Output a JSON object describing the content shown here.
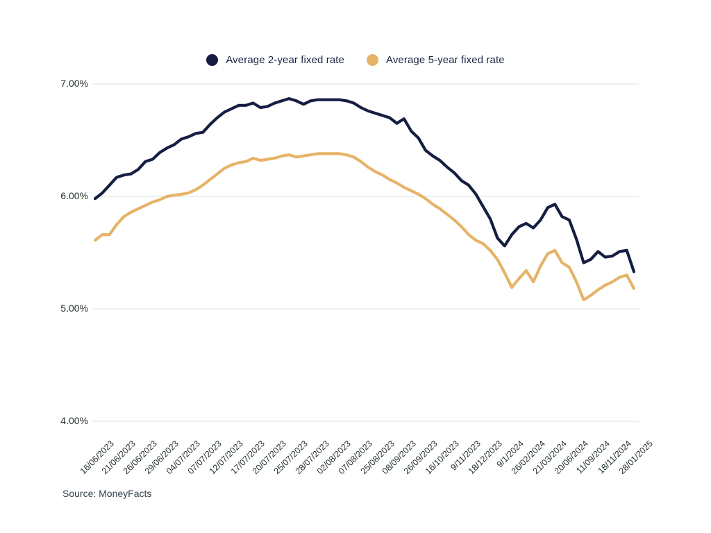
{
  "legend": [
    {
      "label": "Average 2-year fixed rate"
    },
    {
      "label": "Average 5-year fixed rate"
    }
  ],
  "source_text": "Source: MoneyFacts",
  "colors": {
    "series_2yr": "#151e42",
    "series_5yr": "#e6b369",
    "grid": "#e4e6e5",
    "axis_text": "#25332e"
  },
  "chart_data": {
    "type": "line",
    "title": "",
    "xlabel": "",
    "ylabel": "",
    "grid": true,
    "legend_position": "top",
    "y_ticks": [
      "7.00%",
      "6.00%",
      "5.00%",
      "4.00%"
    ],
    "y_tick_values": [
      7.0,
      6.0,
      5.0,
      4.0
    ],
    "ylim": [
      4.0,
      7.2
    ],
    "grid_color": "#e4e6e5",
    "label_every": 3,
    "x_labels": [
      "16/06/2023",
      "21/06/2023",
      "26/06/2023",
      "29/06/2023",
      "04/07/2023",
      "07/07/2023",
      "12/07/2023",
      "17/07/2023",
      "20/07/2023",
      "25/07/2023",
      "28/07/2023",
      "02/08/2023",
      "07/08/2023",
      "25/08/2023",
      "08/09/2023",
      "26/09/2023",
      "16/10/2023",
      "9/11/2023",
      "18/12/2023",
      "9/1/2024",
      "26/02/2024",
      "21/03/2024",
      "20/06/2024",
      "11/09/2024",
      "18/11/2024",
      "28/01/2025"
    ],
    "series": [
      {
        "name": "Average 2-year fixed rate",
        "color": "#151e42",
        "values": [
          5.98,
          6.03,
          6.1,
          6.17,
          6.19,
          6.2,
          6.24,
          6.31,
          6.33,
          6.39,
          6.43,
          6.46,
          6.51,
          6.53,
          6.56,
          6.57,
          6.64,
          6.7,
          6.75,
          6.78,
          6.81,
          6.81,
          6.83,
          6.79,
          6.8,
          6.83,
          6.85,
          6.87,
          6.85,
          6.82,
          6.85,
          6.86,
          6.86,
          6.86,
          6.86,
          6.85,
          6.83,
          6.79,
          6.76,
          6.74,
          6.72,
          6.7,
          6.65,
          6.69,
          6.58,
          6.52,
          6.41,
          6.36,
          6.32,
          6.26,
          6.21,
          6.14,
          6.1,
          6.02,
          5.91,
          5.8,
          5.63,
          5.56,
          5.66,
          5.73,
          5.76,
          5.72,
          5.79,
          5.9,
          5.93,
          5.82,
          5.79,
          5.62,
          5.41,
          5.44,
          5.51,
          5.46,
          5.47,
          5.51,
          5.52,
          5.33
        ]
      },
      {
        "name": "Average 5-year fixed rate",
        "color": "#e6b369",
        "values": [
          5.61,
          5.66,
          5.66,
          5.75,
          5.82,
          5.86,
          5.89,
          5.92,
          5.95,
          5.97,
          6.0,
          6.01,
          6.02,
          6.03,
          6.06,
          6.1,
          6.15,
          6.2,
          6.25,
          6.28,
          6.3,
          6.31,
          6.34,
          6.32,
          6.33,
          6.34,
          6.36,
          6.37,
          6.35,
          6.36,
          6.37,
          6.38,
          6.38,
          6.38,
          6.38,
          6.37,
          6.35,
          6.31,
          6.26,
          6.22,
          6.19,
          6.15,
          6.12,
          6.08,
          6.05,
          6.02,
          5.98,
          5.93,
          5.89,
          5.84,
          5.79,
          5.73,
          5.66,
          5.61,
          5.58,
          5.52,
          5.44,
          5.32,
          5.19,
          5.27,
          5.34,
          5.24,
          5.38,
          5.49,
          5.52,
          5.41,
          5.37,
          5.24,
          5.08,
          5.12,
          5.17,
          5.21,
          5.24,
          5.28,
          5.3,
          5.18
        ]
      }
    ]
  }
}
